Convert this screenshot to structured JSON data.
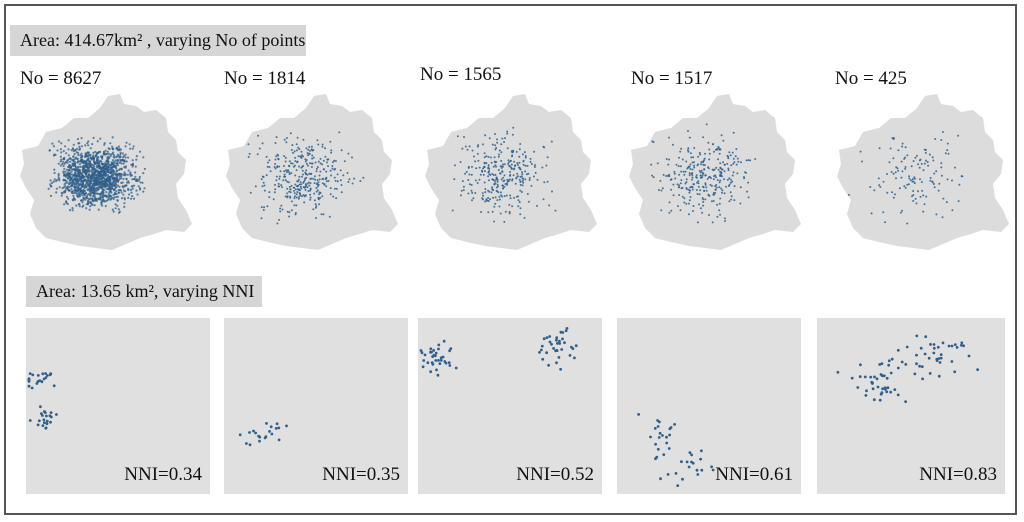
{
  "top_section": {
    "title": "Area: 414.67km² , varying No of points",
    "maps": [
      {
        "label": "No = 8627",
        "count": 8627
      },
      {
        "label": "No = 1814",
        "count": 1814
      },
      {
        "label": "No = 1565",
        "count": 1565
      },
      {
        "label": "No = 1517",
        "count": 1517
      },
      {
        "label": "No = 425",
        "count": 425
      }
    ]
  },
  "bottom_section": {
    "title": "Area: 13.65 km², varying NNI",
    "tiles": [
      {
        "label": "NNI=0.34",
        "nni": 0.34
      },
      {
        "label": "NNI=0.35",
        "nni": 0.35
      },
      {
        "label": "NNI=0.52",
        "nni": 0.52
      },
      {
        "label": "NNI=0.61",
        "nni": 0.61
      },
      {
        "label": "NNI=0.83",
        "nni": 0.83
      }
    ]
  },
  "colors": {
    "region_fill": "#dcdcdc",
    "tile_fill": "#e0e0e0",
    "point": "#2f5f8a",
    "banner": "#d6d6d6"
  }
}
